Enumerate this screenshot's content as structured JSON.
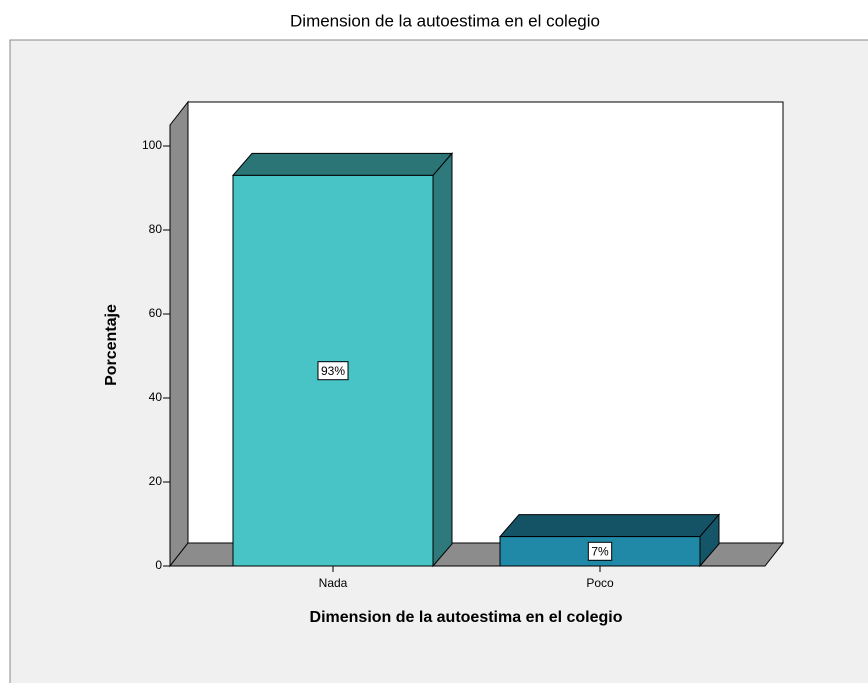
{
  "chart_data": {
    "type": "bar3d",
    "title": "Dimension de la autoestima en el colegio",
    "xlabel": "Dimension de la autoestima en el colegio",
    "ylabel": "Porcentaje",
    "categories": [
      "Nada",
      "Poco"
    ],
    "values": [
      93,
      7
    ],
    "value_labels": [
      "93%",
      "7%"
    ],
    "colors": [
      "#48c3c6",
      "#2189a8"
    ],
    "ylim": [
      0,
      105
    ],
    "yticks": [
      0,
      20,
      40,
      60,
      80,
      100
    ]
  }
}
